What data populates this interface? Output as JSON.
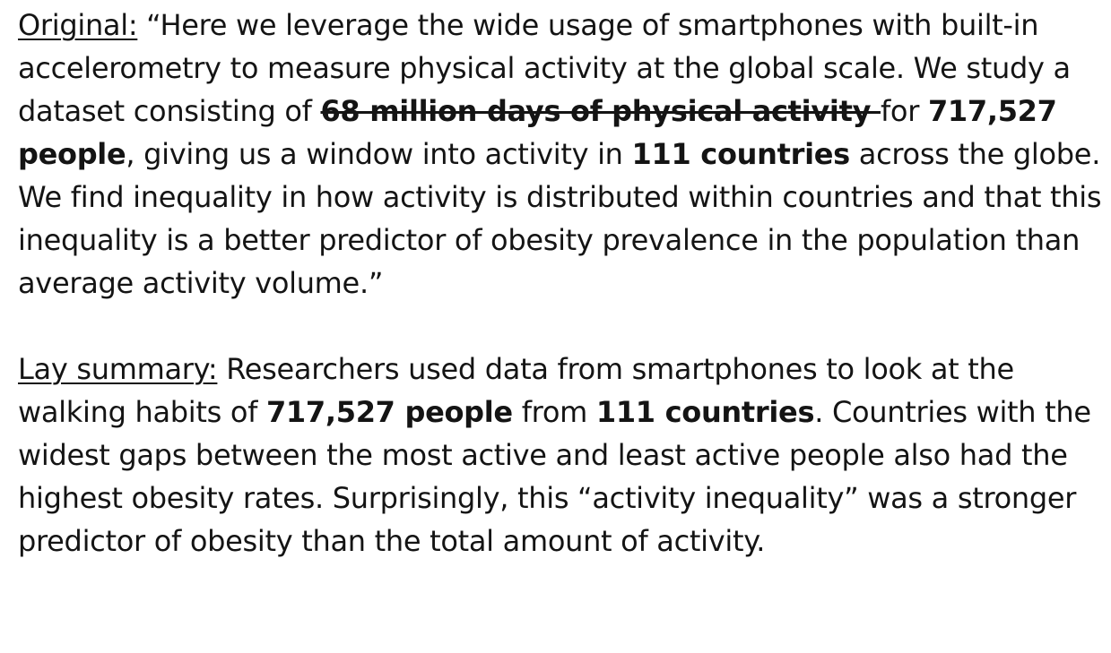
{
  "original": {
    "label": "Original:",
    "t1": " “Here we leverage the wide usage of smartphones with built-in accelerometry to measure physical activity at the global scale. We study a dataset consisting of ",
    "struck": "68 million days of physical activity ",
    "t2": "for ",
    "people": "717,527 people",
    "t3": ", giving us a window into activity in ",
    "countries": "111 countries",
    "t4": " across the globe. We find inequality in how activity is distributed within countries and that this inequality is a better predictor of obesity prevalence in the population than average activity volume.”"
  },
  "lay_summary": {
    "label": "Lay summary:",
    "t1": " Researchers used data from smartphones to look at the walking habits of ",
    "people": "717,527 people",
    "t2": " from ",
    "countries": "111 countries",
    "t3": ". Countries with the widest gaps between the most active and least active people also had the highest obesity rates. Surprisingly, this “activity inequality” was a stronger predictor of obesity than the total amount of activity."
  },
  "colors": {
    "text": "#141414",
    "background": "#ffffff"
  }
}
